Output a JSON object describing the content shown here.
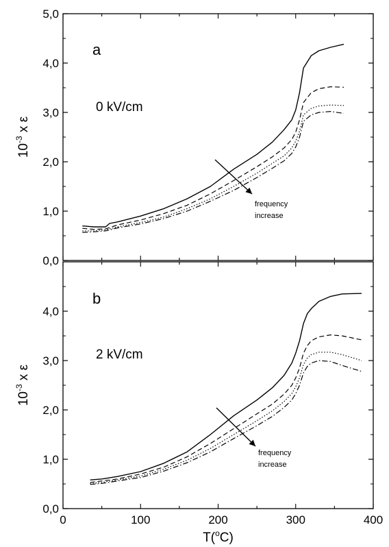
{
  "chart_data": [
    {
      "type": "line",
      "panel_label": "a",
      "field_label": "0 kV/cm",
      "annotation": [
        "frequency",
        "increase"
      ],
      "ylabel": "10",
      "ylabel_exp": "-3",
      "ylabel_tail": " x ε",
      "xlim": [
        0,
        400
      ],
      "ylim": [
        0,
        5
      ],
      "y_ticks": [
        "0,0",
        "1,0",
        "2,0",
        "3,0",
        "4,0",
        "5,0"
      ],
      "series": [
        {
          "style": "solid",
          "x": [
            25,
            40,
            55,
            60,
            70,
            100,
            130,
            160,
            190,
            220,
            250,
            270,
            285,
            295,
            300,
            305,
            310,
            320,
            330,
            345,
            362
          ],
          "y": [
            0.7,
            0.68,
            0.68,
            0.75,
            0.78,
            0.9,
            1.05,
            1.25,
            1.5,
            1.85,
            2.15,
            2.4,
            2.65,
            2.85,
            3.05,
            3.4,
            3.9,
            4.15,
            4.25,
            4.32,
            4.38
          ]
        },
        {
          "style": "dashed",
          "x": [
            25,
            40,
            55,
            70,
            100,
            130,
            160,
            190,
            220,
            250,
            270,
            285,
            295,
            300,
            305,
            310,
            320,
            330,
            345,
            362
          ],
          "y": [
            0.65,
            0.63,
            0.64,
            0.72,
            0.82,
            0.95,
            1.12,
            1.35,
            1.62,
            1.9,
            2.1,
            2.28,
            2.45,
            2.6,
            2.85,
            3.2,
            3.4,
            3.48,
            3.52,
            3.51
          ]
        },
        {
          "style": "dotted",
          "x": [
            25,
            40,
            55,
            70,
            100,
            130,
            160,
            190,
            220,
            250,
            270,
            285,
            295,
            300,
            305,
            310,
            320,
            330,
            345,
            362
          ],
          "y": [
            0.6,
            0.6,
            0.62,
            0.68,
            0.77,
            0.88,
            1.05,
            1.25,
            1.5,
            1.77,
            1.97,
            2.12,
            2.28,
            2.42,
            2.62,
            2.95,
            3.08,
            3.13,
            3.15,
            3.14
          ]
        },
        {
          "style": "dashdot",
          "x": [
            25,
            40,
            55,
            70,
            100,
            130,
            160,
            190,
            220,
            250,
            270,
            285,
            295,
            300,
            305,
            310,
            320,
            330,
            345,
            362
          ],
          "y": [
            0.57,
            0.58,
            0.6,
            0.66,
            0.74,
            0.85,
            1.0,
            1.2,
            1.42,
            1.68,
            1.87,
            2.02,
            2.17,
            2.3,
            2.5,
            2.82,
            2.95,
            3.0,
            3.02,
            2.98
          ]
        }
      ]
    },
    {
      "type": "line",
      "panel_label": "b",
      "field_label": "2 kV/cm",
      "annotation": [
        "frequency",
        "increase"
      ],
      "xlabel": "T(",
      "xlabel_sup": "o",
      "xlabel_tail": "C)",
      "ylabel": "10",
      "ylabel_exp": "-3",
      "ylabel_tail": " x ε",
      "xlim": [
        0,
        400
      ],
      "ylim": [
        0,
        5
      ],
      "x_ticks": [
        "0",
        "100",
        "200",
        "300",
        "400"
      ],
      "y_ticks": [
        "0,0",
        "1,0",
        "2,0",
        "3,0",
        "4,0"
      ],
      "series": [
        {
          "style": "solid",
          "x": [
            35,
            50,
            70,
            100,
            130,
            160,
            190,
            220,
            250,
            270,
            285,
            295,
            300,
            305,
            310,
            315,
            320,
            330,
            345,
            360,
            385
          ],
          "y": [
            0.58,
            0.6,
            0.65,
            0.75,
            0.92,
            1.15,
            1.5,
            1.88,
            2.2,
            2.45,
            2.7,
            2.95,
            3.15,
            3.4,
            3.75,
            3.95,
            4.05,
            4.2,
            4.3,
            4.35,
            4.36
          ]
        },
        {
          "style": "dashed",
          "x": [
            35,
            50,
            70,
            100,
            130,
            160,
            190,
            220,
            250,
            270,
            285,
            295,
            300,
            305,
            310,
            315,
            320,
            330,
            345,
            360,
            385
          ],
          "y": [
            0.53,
            0.56,
            0.6,
            0.7,
            0.84,
            1.05,
            1.32,
            1.62,
            1.92,
            2.12,
            2.32,
            2.5,
            2.65,
            2.85,
            3.15,
            3.3,
            3.4,
            3.48,
            3.52,
            3.5,
            3.42
          ]
        },
        {
          "style": "dotted",
          "x": [
            35,
            50,
            70,
            100,
            130,
            160,
            190,
            220,
            250,
            270,
            285,
            295,
            300,
            305,
            310,
            315,
            320,
            330,
            345,
            360,
            385
          ],
          "y": [
            0.51,
            0.53,
            0.58,
            0.66,
            0.8,
            0.98,
            1.22,
            1.5,
            1.78,
            1.98,
            2.17,
            2.33,
            2.47,
            2.65,
            2.92,
            3.05,
            3.12,
            3.17,
            3.17,
            3.12,
            3.0
          ]
        },
        {
          "style": "dashdot",
          "x": [
            35,
            50,
            70,
            100,
            130,
            160,
            190,
            220,
            250,
            270,
            285,
            295,
            300,
            305,
            310,
            315,
            320,
            330,
            345,
            360,
            385
          ],
          "y": [
            0.49,
            0.51,
            0.56,
            0.63,
            0.76,
            0.93,
            1.15,
            1.42,
            1.68,
            1.87,
            2.05,
            2.2,
            2.33,
            2.5,
            2.75,
            2.88,
            2.95,
            3.0,
            2.98,
            2.9,
            2.78
          ]
        }
      ]
    }
  ]
}
